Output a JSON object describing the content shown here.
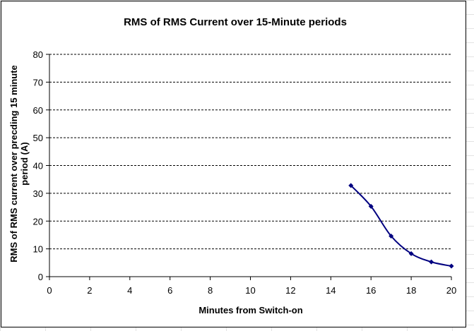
{
  "chart_data": {
    "type": "line",
    "title": "RMS of RMS Current over 15-Minute periods",
    "xlabel": "Minutes from Switch-on",
    "ylabel_lines": [
      "RMS of RMS current over precding 15 minute",
      "period (A)"
    ],
    "xlim": [
      0,
      20
    ],
    "ylim": [
      0,
      80
    ],
    "x_ticks": [
      0,
      2,
      4,
      6,
      8,
      10,
      12,
      14,
      16,
      18,
      20
    ],
    "y_ticks": [
      0,
      10,
      20,
      30,
      40,
      50,
      60,
      70,
      80
    ],
    "grid": "horizontal dashed",
    "series": [
      {
        "color": "#000080",
        "points": [
          {
            "x": 15,
            "y": 32.8
          },
          {
            "x": 16,
            "y": 25.3
          },
          {
            "x": 17,
            "y": 14.6
          },
          {
            "x": 18,
            "y": 8.3
          },
          {
            "x": 19,
            "y": 5.3
          },
          {
            "x": 20,
            "y": 3.8
          }
        ]
      }
    ]
  }
}
